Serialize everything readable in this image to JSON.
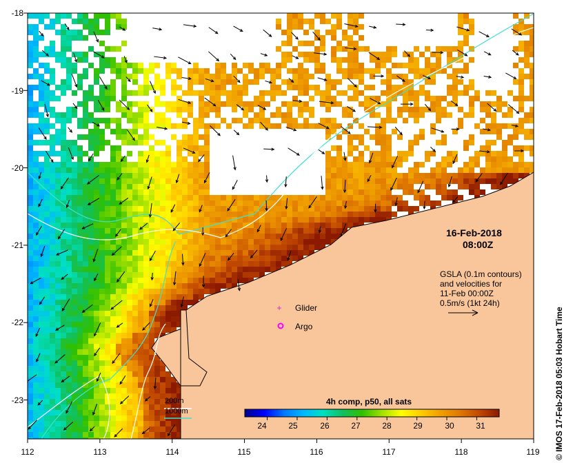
{
  "title": {
    "date": "16-Feb-2018",
    "time": "08:00Z"
  },
  "gsla_note": {
    "line1": "GSLA (0.1m contours)",
    "line2": "and velocities for",
    "line3": "11-Feb 00:00Z",
    "line4": "0.5m/s (1kt 24h)"
  },
  "legend": {
    "glider": "Glider",
    "argo": "Argo",
    "glider_color": "#cc22cc",
    "argo_color": "#ff00ff"
  },
  "bathymetry": {
    "label_200m": "200m",
    "label_1000m": "1000m",
    "color_200m": "#ffffff",
    "color_1000m": "#40e0d0"
  },
  "colorbar": {
    "title": "4h comp, p50, all sats",
    "min": 23.25,
    "max": 31.75,
    "ticks": [
      "24",
      "25",
      "26",
      "27",
      "28",
      "29",
      "30",
      "31"
    ],
    "colors": [
      "#00008b",
      "#0000ff",
      "#0077ff",
      "#00b8ff",
      "#00e0c0",
      "#10c060",
      "#30c000",
      "#a0e000",
      "#ffff00",
      "#ffcc00",
      "#f0a000",
      "#e07800",
      "#c04800",
      "#8b1a00"
    ]
  },
  "axes": {
    "lon_ticks": [
      "112",
      "113",
      "114",
      "115",
      "116",
      "117",
      "118",
      "119"
    ],
    "lat_ticks": [
      "-18",
      "-19",
      "-20",
      "-21",
      "-22",
      "-23"
    ]
  },
  "credit": "© IMOS 17-Feb-2018 05:03 Hobart Time",
  "colors": {
    "land": "#f9c69b",
    "no_data": "#ffffff",
    "arrows": "#000000"
  }
}
